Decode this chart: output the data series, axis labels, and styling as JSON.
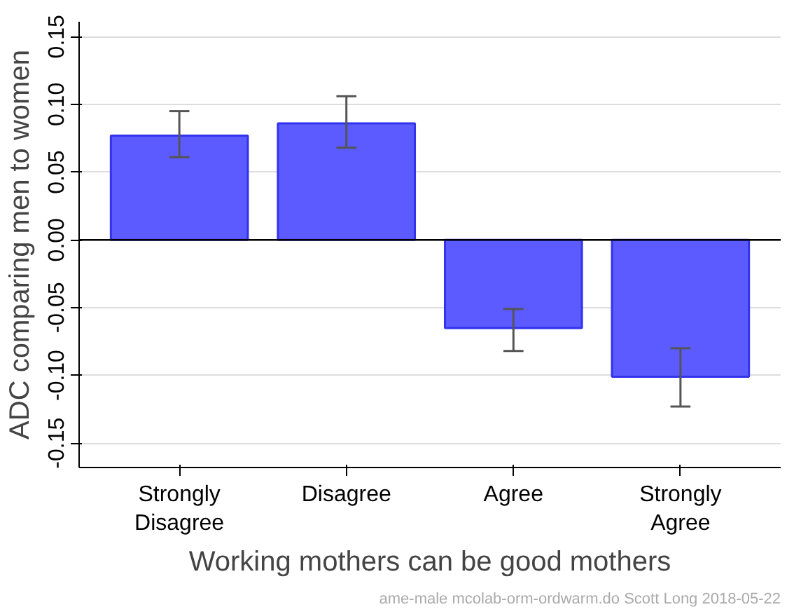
{
  "chart_data": {
    "type": "bar",
    "xlabel": "Working mothers can be good mothers",
    "ylabel": "ADC comparing men to women",
    "categories": [
      "Strongly\nDisagree",
      "Disagree",
      "Agree",
      "Strongly\nAgree"
    ],
    "series": [
      {
        "color": "#5b5bff",
        "values": [
          0.077,
          0.086,
          -0.065,
          -0.101
        ],
        "errors": [
          [
            0.061,
            0.095
          ],
          [
            0.068,
            0.106
          ],
          [
            -0.082,
            -0.051
          ],
          [
            -0.123,
            -0.08
          ]
        ]
      }
    ],
    "ylim": [
      -0.168,
      0.161
    ],
    "yticks": [
      {
        "value": -0.15,
        "label": "-0.15"
      },
      {
        "value": -0.1,
        "label": "-0.10"
      },
      {
        "value": -0.05,
        "label": "-0.05"
      },
      {
        "value": 0,
        "label": "0.00"
      },
      {
        "value": 0.05,
        "label": "0.05"
      },
      {
        "value": 0.1,
        "label": "0.10"
      },
      {
        "value": 0.15,
        "label": "0.15"
      }
    ],
    "grid": "y",
    "ref_lines": [
      {
        "axis": "y",
        "value": 0,
        "color": "#000000"
      }
    ],
    "annotations": [
      "ame-male mcolab-orm-ordwarm.do Scott Long 2018-05-22"
    ]
  }
}
